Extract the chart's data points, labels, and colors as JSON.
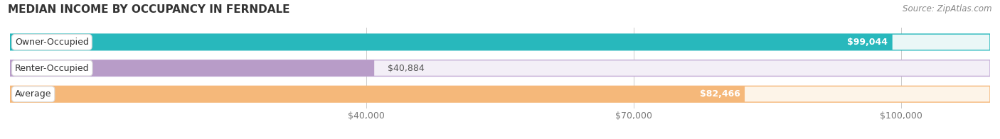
{
  "title": "MEDIAN INCOME BY OCCUPANCY IN FERNDALE",
  "source": "Source: ZipAtlas.com",
  "categories": [
    "Owner-Occupied",
    "Renter-Occupied",
    "Average"
  ],
  "values": [
    99044,
    40884,
    82466
  ],
  "labels": [
    "$99,044",
    "$40,884",
    "$82,466"
  ],
  "bar_colors": [
    "#28b8bc",
    "#b89cc8",
    "#f5b87a"
  ],
  "bar_bg_colors": [
    "#eaf7f7",
    "#f3eff7",
    "#fdf4e8"
  ],
  "bar_edge_colors": [
    "#28b8bc",
    "#c4acd6",
    "#f5b87a"
  ],
  "xlim": [
    0,
    110000
  ],
  "xmin": 0,
  "xticks": [
    40000,
    70000,
    100000
  ],
  "xticklabels": [
    "$40,000",
    "$70,000",
    "$100,000"
  ],
  "bar_height": 0.62,
  "title_fontsize": 11,
  "source_fontsize": 8.5,
  "tick_fontsize": 9,
  "label_fontsize": 9,
  "category_fontsize": 9
}
